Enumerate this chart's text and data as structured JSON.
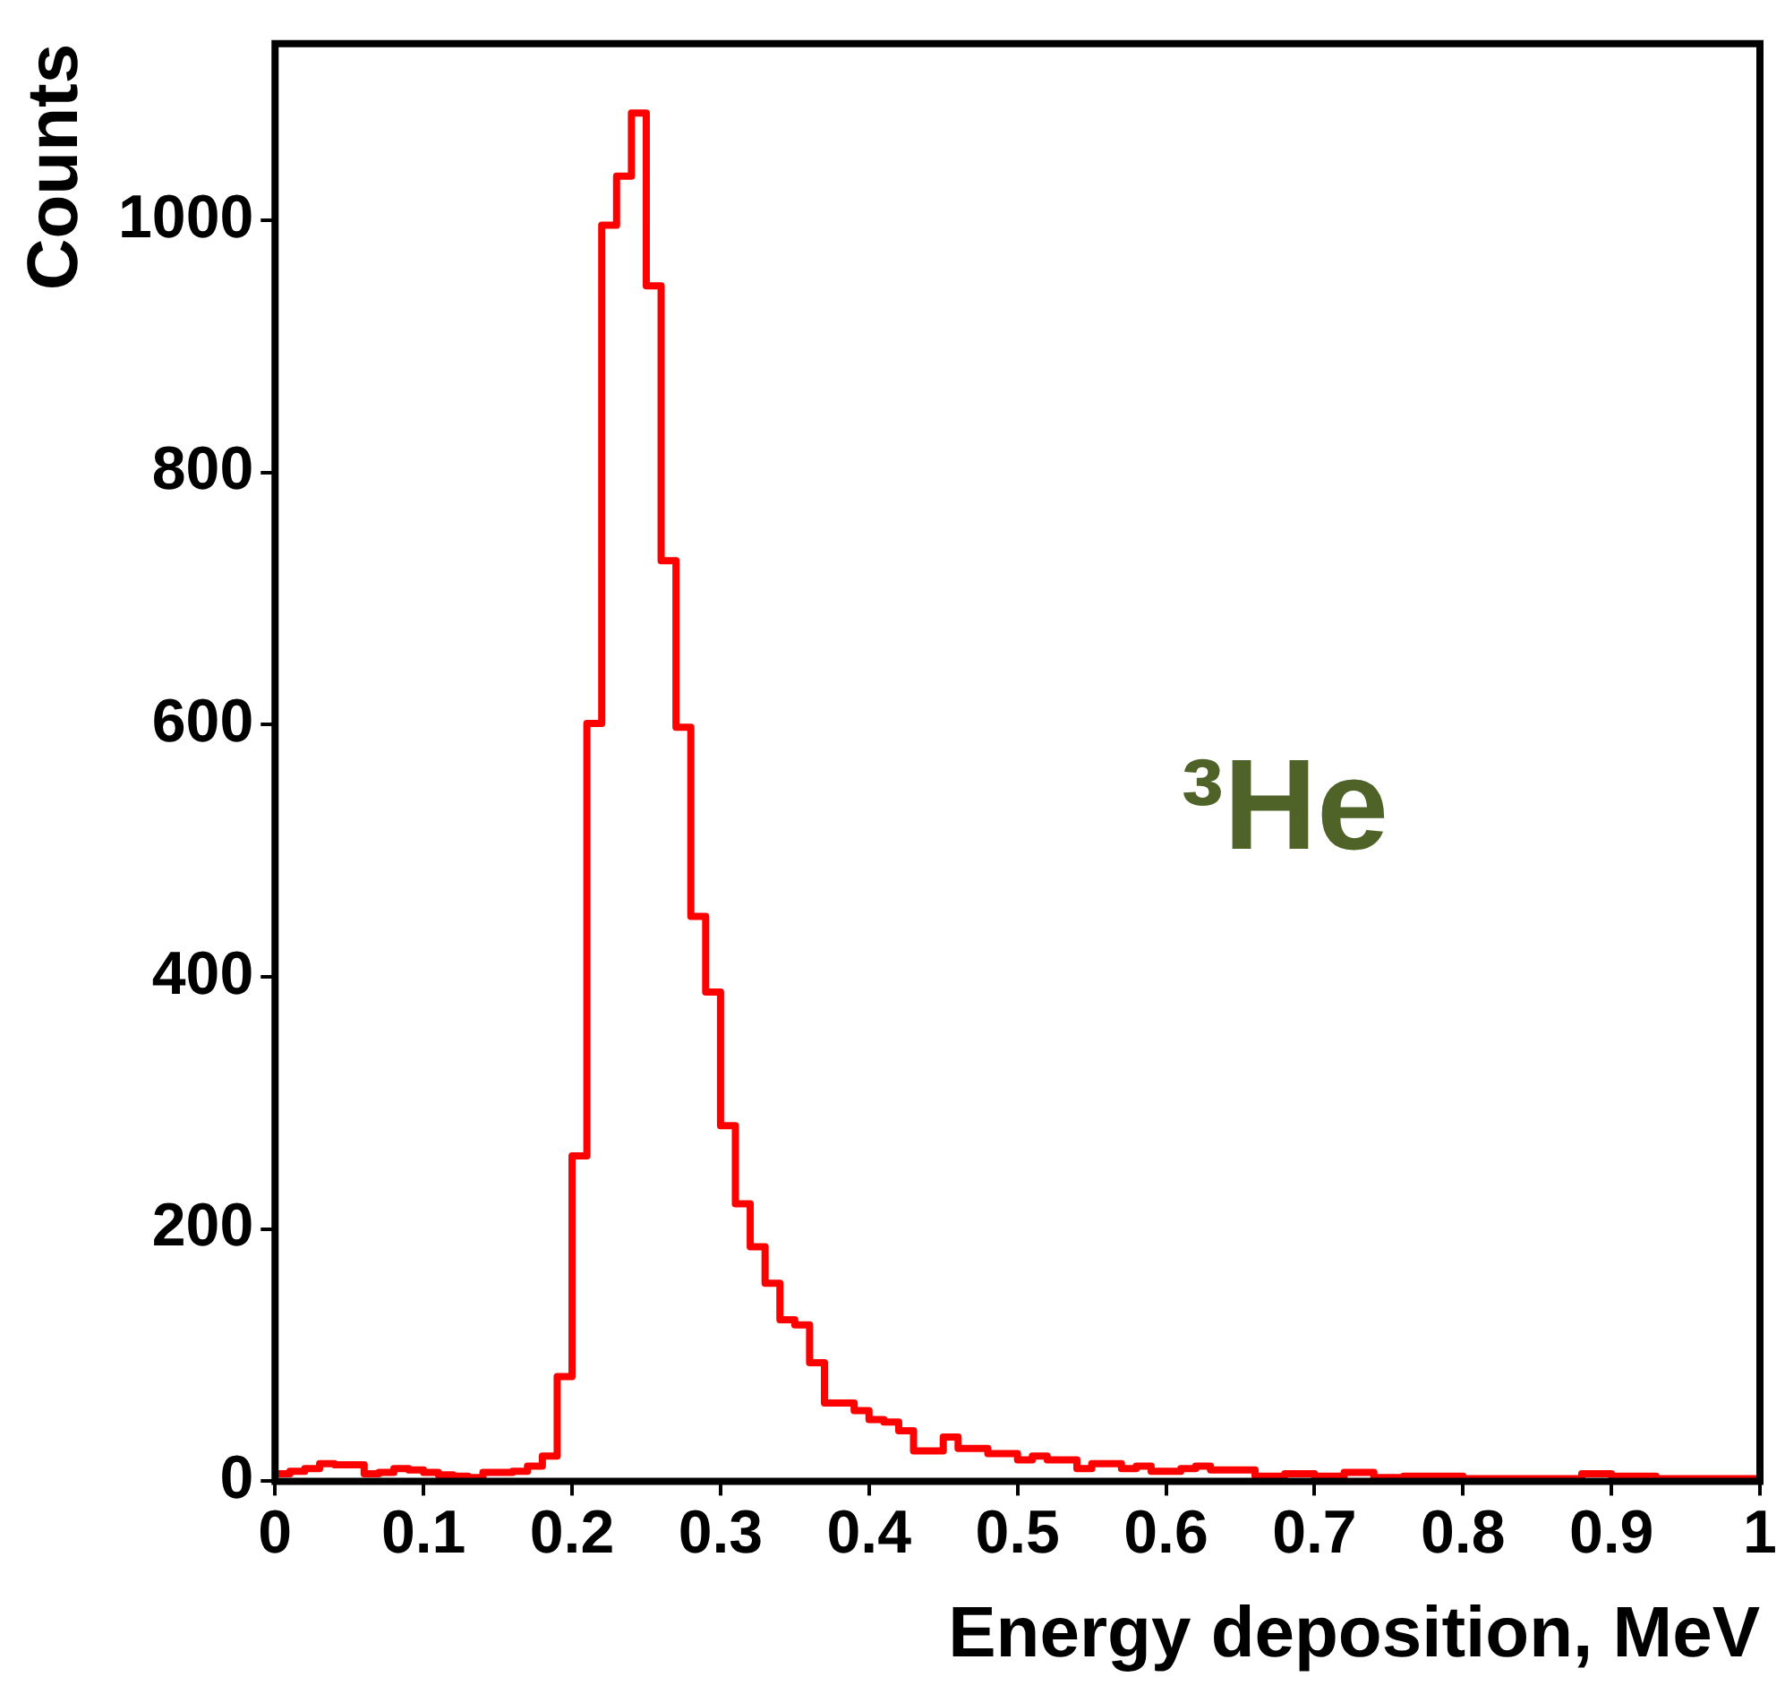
{
  "chart_data": {
    "type": "histogram",
    "xlabel": "Energy deposition, MeV",
    "ylabel": "Counts",
    "annotations": [
      "³He"
    ],
    "bins": [
      0,
      0.01,
      0.02,
      0.03,
      0.04,
      0.05,
      0.06,
      0.07,
      0.08,
      0.09,
      0.1,
      0.11,
      0.12,
      0.13,
      0.14,
      0.15,
      0.16,
      0.17,
      0.18,
      0.19,
      0.2,
      0.21,
      0.22,
      0.23,
      0.24,
      0.25,
      0.26,
      0.27,
      0.28,
      0.29,
      0.3,
      0.31,
      0.32,
      0.33,
      0.34,
      0.35,
      0.36,
      0.37,
      0.38,
      0.39,
      0.4,
      0.41,
      0.42,
      0.43,
      0.44,
      0.45,
      0.46,
      0.47,
      0.48,
      0.49,
      0.5,
      0.51,
      0.52,
      0.53,
      0.54,
      0.55,
      0.56,
      0.57,
      0.58,
      0.59,
      0.6,
      0.61,
      0.62,
      0.63,
      0.64,
      0.65,
      0.66,
      0.67,
      0.68,
      0.69,
      0.7,
      0.71,
      0.72,
      0.73,
      0.74,
      0.75,
      0.76,
      0.77,
      0.78,
      0.79,
      0.8,
      0.81,
      0.82,
      0.83,
      0.84,
      0.85,
      0.86,
      0.87,
      0.88,
      0.89,
      0.9,
      0.91,
      0.92,
      0.93,
      0.94,
      0.95,
      0.96,
      0.97,
      0.98,
      0.99,
      1
    ],
    "values": [
      6,
      8,
      10,
      14,
      13,
      13,
      6,
      7,
      10,
      9,
      7,
      5,
      4,
      3,
      7,
      7,
      8,
      12,
      20,
      83,
      258,
      601,
      996,
      1035,
      1085,
      948,
      730,
      598,
      448,
      388,
      282,
      220,
      186,
      157,
      128,
      124,
      94,
      62,
      62,
      56,
      49,
      47,
      40,
      24,
      24,
      35,
      26,
      26,
      22,
      22,
      17,
      20,
      17,
      17,
      10,
      14,
      14,
      10,
      12,
      8,
      8,
      10,
      12,
      9,
      9,
      9,
      4,
      4,
      6,
      6,
      4,
      4,
      7,
      7,
      3,
      3,
      4,
      4,
      4,
      4,
      2,
      2,
      2,
      2,
      2,
      2,
      2,
      2,
      6,
      6,
      4,
      4,
      4,
      2,
      2,
      2,
      2,
      2,
      2,
      2
    ],
    "color": "#ff0000",
    "xlim": [
      0,
      1
    ],
    "xticks": [
      0,
      0.1,
      0.2,
      0.3,
      0.4,
      0.5,
      0.6,
      0.7,
      0.8,
      0.9,
      1
    ],
    "ylim": [
      0,
      1140
    ],
    "yticks": [
      0,
      200,
      400,
      600,
      800,
      1000
    ],
    "legend": false
  }
}
